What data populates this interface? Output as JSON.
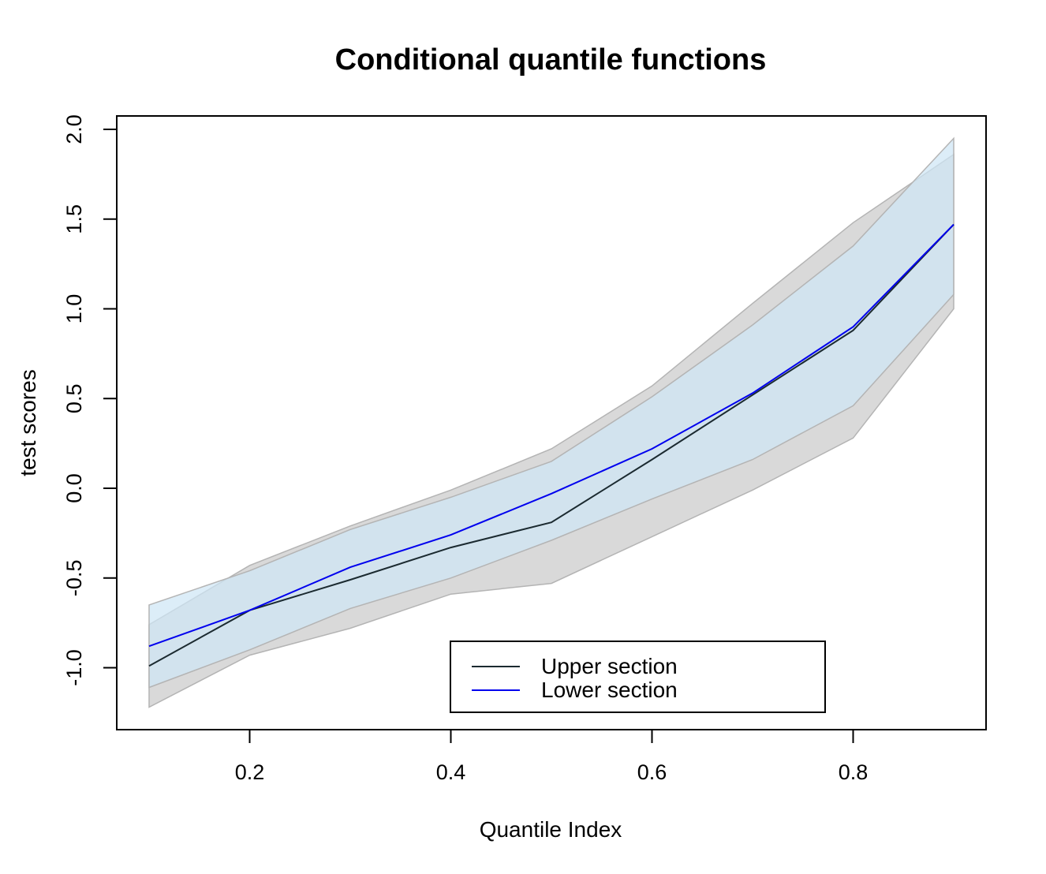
{
  "chart_data": {
    "type": "line",
    "title": "Conditional quantile functions",
    "xlabel": "Quantile Index",
    "ylabel": "test scores",
    "xlim": [
      0.1,
      0.9
    ],
    "ylim": [
      -1.25,
      2.0
    ],
    "xticks": [
      "0.2",
      "0.4",
      "0.6",
      "0.8"
    ],
    "yticks": [
      "-1.0",
      "-0.5",
      "0.0",
      "0.5",
      "1.0",
      "1.5",
      "2.0"
    ],
    "legend_position": "bottom-center",
    "x": [
      0.1,
      0.2,
      0.3,
      0.4,
      0.5,
      0.6,
      0.7,
      0.8,
      0.9
    ],
    "series": [
      {
        "name": "Upper section",
        "color": "#1b2a30",
        "values": [
          -0.99,
          -0.68,
          -0.51,
          -0.33,
          -0.19,
          0.16,
          0.52,
          0.88,
          1.47
        ],
        "band_lower": [
          -1.22,
          -0.93,
          -0.78,
          -0.59,
          -0.53,
          -0.27,
          -0.01,
          0.28,
          1.0
        ],
        "band_upper": [
          -0.76,
          -0.43,
          -0.21,
          -0.01,
          0.22,
          0.57,
          1.03,
          1.48,
          1.86
        ],
        "band_color": "#d9d9d9"
      },
      {
        "name": "Lower section",
        "color": "#0000ee",
        "values": [
          -0.88,
          -0.68,
          -0.44,
          -0.26,
          -0.03,
          0.22,
          0.53,
          0.9,
          1.47
        ],
        "band_lower": [
          -1.11,
          -0.9,
          -0.67,
          -0.5,
          -0.29,
          -0.06,
          0.16,
          0.46,
          1.08
        ],
        "band_upper": [
          -0.65,
          -0.46,
          -0.23,
          -0.05,
          0.15,
          0.51,
          0.91,
          1.35,
          1.95
        ],
        "band_color": "#cfe6f5"
      }
    ]
  }
}
